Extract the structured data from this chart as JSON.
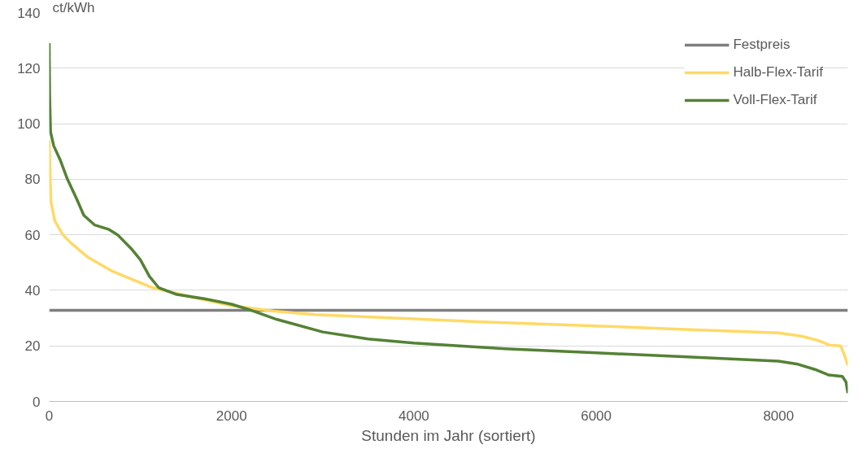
{
  "chart_data": {
    "type": "line",
    "xlabel": "Stunden im Jahr (sortiert)",
    "ylabel": "ct/kWh",
    "xlim": [
      0,
      8760
    ],
    "xticks": [
      0,
      2000,
      4000,
      6000,
      8000
    ],
    "ylim": [
      0,
      140
    ],
    "yticks": [
      0,
      20,
      40,
      60,
      80,
      100,
      120,
      140
    ],
    "grid": "y",
    "legend": "top right",
    "marker": "none",
    "line_style": "solid",
    "series": [
      {
        "name": "Festpreis",
        "color": "#7f7f7f",
        "x": [
          0,
          8760
        ],
        "values": [
          32.8,
          32.8
        ]
      },
      {
        "name": "Halb-Flex-Tarif",
        "color": "#ffd966",
        "x": [
          0,
          18,
          62,
          150,
          240,
          420,
          685,
          1130,
          1575,
          2000,
          2465,
          2910,
          4000,
          4690,
          6000,
          6915,
          8000,
          8250,
          8430,
          8560,
          8680,
          8720,
          8760
        ],
        "values": [
          94,
          72,
          65,
          60,
          57,
          52,
          47,
          41,
          37.5,
          34.5,
          32.5,
          31.3,
          29.7,
          28.7,
          27.2,
          26,
          24.7,
          23.5,
          22,
          20.3,
          20,
          17,
          13
        ]
      },
      {
        "name": "Voll-Flex-Tarif",
        "color": "#548235",
        "x": [
          0,
          5,
          15,
          50,
          120,
          200,
          300,
          380,
          500,
          650,
          750,
          900,
          1000,
          1100,
          1200,
          1400,
          1700,
          2000,
          2200,
          2500,
          3000,
          3500,
          4000,
          5000,
          6000,
          7000,
          8000,
          8200,
          8400,
          8550,
          8700,
          8740,
          8760
        ],
        "values": [
          129,
          110,
          97,
          92,
          87,
          80,
          73,
          67,
          63.5,
          62,
          60,
          55,
          51,
          45,
          41,
          38.5,
          37,
          35,
          33,
          29.5,
          25,
          22.5,
          21,
          19,
          17.5,
          16,
          14.5,
          13.5,
          11.5,
          9.5,
          9,
          7,
          3
        ]
      }
    ]
  }
}
